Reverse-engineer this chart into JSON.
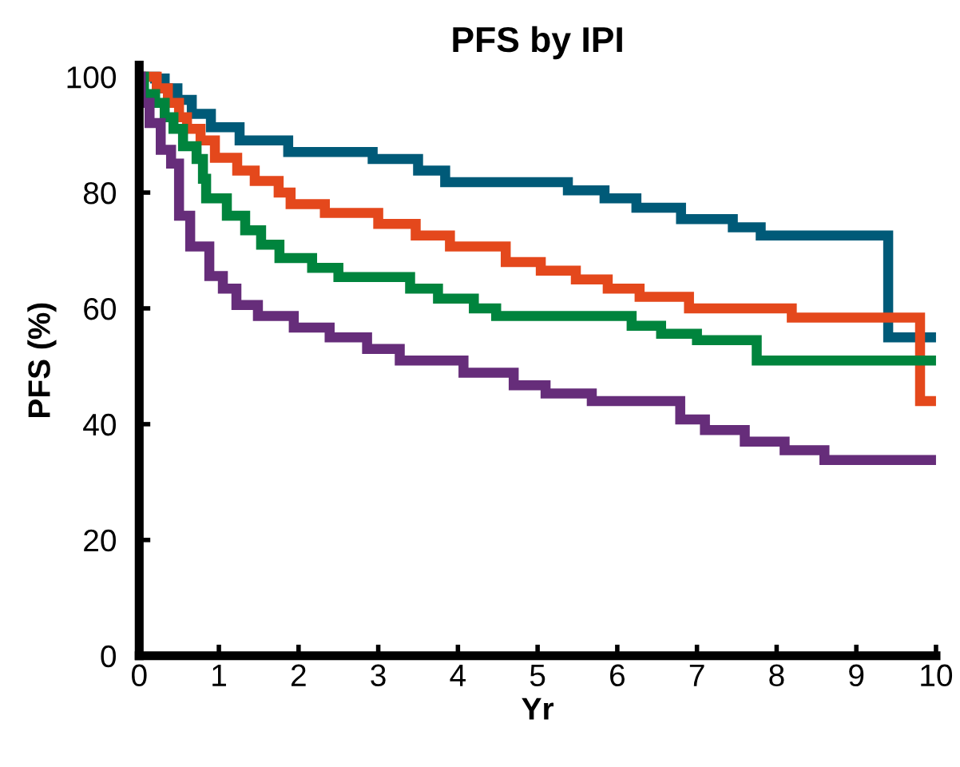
{
  "chart_data": {
    "type": "step",
    "title": "PFS by IPI",
    "xlabel": "Yr",
    "ylabel": "PFS (%)",
    "series": [
      {
        "color": "#005a78",
        "x": [
          0,
          0.2,
          0.32,
          0.48,
          0.66,
          0.9,
          1.26,
          1.87,
          2.93,
          3.5,
          3.84,
          5.38,
          5.84,
          6.24,
          6.8,
          7.45,
          7.8,
          9.4,
          10
        ],
        "values": [
          100,
          99.7,
          98,
          96,
          93.6,
          91.3,
          89,
          87,
          85.8,
          83.8,
          81.8,
          80.4,
          79,
          77.4,
          75.4,
          74,
          72.6,
          55,
          55
        ]
      },
      {
        "color": "#e4481c",
        "x": [
          0,
          0.22,
          0.36,
          0.5,
          0.6,
          0.77,
          0.95,
          1.23,
          1.45,
          1.75,
          1.9,
          2.33,
          3.0,
          3.47,
          3.9,
          4.6,
          5.04,
          5.48,
          5.88,
          6.28,
          6.9,
          8.19,
          9.8,
          10
        ],
        "values": [
          100,
          98,
          95.5,
          93,
          91,
          89,
          86,
          83.8,
          82,
          80,
          78,
          76.5,
          74.6,
          72.6,
          70.7,
          68,
          66.5,
          65,
          63.4,
          62,
          60,
          58.4,
          44,
          44
        ]
      },
      {
        "color": "#00843d",
        "x": [
          0,
          0.06,
          0.2,
          0.32,
          0.43,
          0.55,
          0.72,
          0.8,
          0.84,
          1.1,
          1.33,
          1.53,
          1.76,
          2.17,
          2.5,
          3.4,
          3.75,
          4.2,
          4.48,
          6.18,
          6.55,
          7.0,
          7.75,
          10
        ],
        "values": [
          100,
          97,
          95.5,
          93,
          91,
          88,
          85.8,
          82.4,
          79,
          76,
          73.5,
          71,
          68.7,
          67,
          65.4,
          63.4,
          61.7,
          60,
          58.7,
          57,
          55.6,
          54.5,
          51,
          51
        ]
      },
      {
        "color": "#662d7a",
        "x": [
          0,
          0.02,
          0.13,
          0.27,
          0.4,
          0.5,
          0.64,
          0.88,
          1.05,
          1.22,
          1.49,
          1.94,
          2.39,
          2.86,
          3.27,
          4.07,
          4.7,
          5.1,
          5.68,
          6.79,
          7.1,
          7.6,
          8.1,
          8.6,
          10
        ],
        "values": [
          100,
          95.5,
          92,
          87.4,
          85,
          76,
          70.7,
          65.6,
          63.4,
          60.6,
          58.7,
          56.7,
          55,
          53,
          51,
          48.9,
          46.7,
          45.3,
          44,
          40.8,
          39,
          37,
          35.5,
          33.8,
          33.8
        ]
      }
    ],
    "xlim": [
      0,
      10
    ],
    "ylim": [
      0,
      102
    ],
    "xticks": [
      0,
      1,
      2,
      3,
      4,
      5,
      6,
      7,
      8,
      9,
      10
    ],
    "yticks": [
      0,
      20,
      40,
      60,
      80,
      100
    ],
    "grid": false,
    "legend": false
  }
}
